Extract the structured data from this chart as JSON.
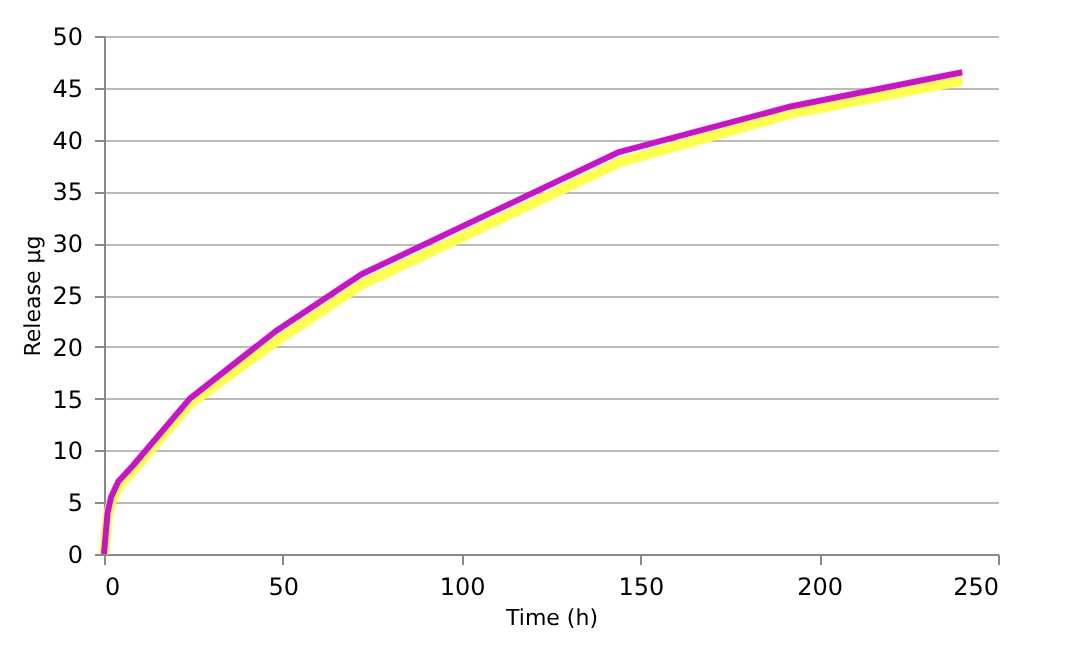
{
  "chart_data": {
    "type": "line",
    "xlabel": "Time (h)",
    "ylabel": "Release µg",
    "x": [
      0,
      1,
      2,
      4,
      8,
      24,
      48,
      72,
      144,
      192,
      240
    ],
    "series": [
      {
        "color": "#ffff4d",
        "values": [
          0,
          3.5,
          5,
          6.5,
          8,
          14.5,
          20.5,
          26,
          37.8,
          42.5,
          45.7
        ]
      },
      {
        "color": "#cc11cc",
        "values": [
          0,
          4,
          5.5,
          7,
          8.5,
          15,
          21.5,
          27,
          38.8,
          43.2,
          46.5
        ]
      }
    ],
    "xlim": [
      0,
      250
    ],
    "xticks": [
      0,
      50,
      100,
      150,
      200,
      250
    ],
    "ylim": [
      0,
      50
    ],
    "yticks": [
      0,
      5,
      10,
      15,
      20,
      25,
      30,
      35,
      40,
      45,
      50
    ],
    "grid": "y",
    "marker": "none",
    "line_style": "solid"
  }
}
